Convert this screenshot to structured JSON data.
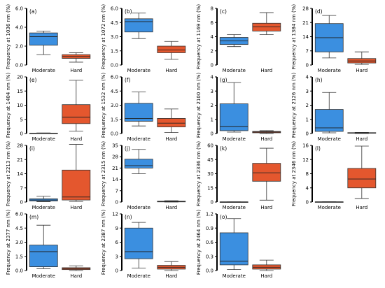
{
  "colors": {
    "moderate": "#3b8fe0",
    "hard": "#e4572e",
    "outline": "#333333",
    "median": "#222222"
  },
  "chart_data": [
    {
      "type": "box",
      "panel_label": "(a)",
      "ylabel": "Frequency at 1036 nm (%)",
      "ylim": [
        0,
        6.0
      ],
      "yticks": [
        "0.0",
        "2.0",
        "4.0",
        "6.0"
      ],
      "categories": [
        "Moderate",
        "Hard"
      ],
      "boxes": [
        {
          "whisker_low": 1.1,
          "q1": 2.1,
          "median": 3.0,
          "q3": 3.4,
          "whisker_high": 3.6
        },
        {
          "whisker_low": 0.3,
          "q1": 0.7,
          "median": 0.9,
          "q3": 1.1,
          "whisker_high": 1.3
        }
      ]
    },
    {
      "type": "box",
      "panel_label": "(b)",
      "ylabel": "Frequency at 1072 nm (%)",
      "ylim": [
        0,
        6.0
      ],
      "yticks": [
        "0.0",
        "1.5",
        "3.0",
        "4.5",
        "6.0"
      ],
      "categories": [
        "Moderate",
        "Hard"
      ],
      "boxes": [
        {
          "whisker_low": 2.8,
          "q1": 3.5,
          "median": 4.6,
          "q3": 4.9,
          "whisker_high": 5.5
        },
        {
          "whisker_low": 0.6,
          "q1": 1.3,
          "median": 1.6,
          "q3": 2.0,
          "whisker_high": 2.5
        }
      ]
    },
    {
      "type": "box",
      "panel_label": "(c)",
      "ylabel": "Frequency at 1169 nm (%)",
      "ylim": [
        0,
        8
      ],
      "yticks": [
        "0",
        "2",
        "4",
        "6",
        "8"
      ],
      "categories": [
        "Moderate",
        "Hard"
      ],
      "boxes": [
        {
          "whisker_low": 2.6,
          "q1": 2.9,
          "median": 3.4,
          "q3": 3.9,
          "whisker_high": 4.3
        },
        {
          "whisker_low": 4.3,
          "q1": 4.8,
          "median": 5.4,
          "q3": 5.9,
          "whisker_high": 7.4
        }
      ]
    },
    {
      "type": "box",
      "panel_label": "(d)",
      "ylabel": "Frequency at 1384 nm (%)",
      "ylim": [
        0,
        28
      ],
      "yticks": [
        "0",
        "7",
        "14",
        "21",
        "28"
      ],
      "categories": [
        "Moderate",
        "Hard"
      ],
      "boxes": [
        {
          "whisker_low": 3.5,
          "q1": 6.5,
          "median": 13.5,
          "q3": 20.5,
          "whisker_high": 24.5
        },
        {
          "whisker_low": 0.3,
          "q1": 1.0,
          "median": 2.0,
          "q3": 3.2,
          "whisker_high": 6.5
        }
      ]
    },
    {
      "type": "box",
      "panel_label": "(e)",
      "ylabel": "Frequency at 1404 nm (%)",
      "ylim": [
        0,
        20
      ],
      "yticks": [
        "0",
        "5",
        "10",
        "15",
        "20"
      ],
      "categories": [
        "Moderate",
        "Hard"
      ],
      "boxes": [
        {
          "whisker_low": 0.0,
          "q1": 0.05,
          "median": 0.1,
          "q3": 0.15,
          "whisker_high": 0.2
        },
        {
          "whisker_low": 0.8,
          "q1": 3.5,
          "median": 5.8,
          "q3": 10.2,
          "whisker_high": 18.8
        }
      ]
    },
    {
      "type": "box",
      "panel_label": "(f)",
      "ylabel": "Frequency at 1532 nm (%)",
      "ylim": [
        0,
        6.0
      ],
      "yticks": [
        "0.0",
        "1.5",
        "3.0",
        "4.5",
        "6.0"
      ],
      "categories": [
        "Moderate",
        "Hard"
      ],
      "boxes": [
        {
          "whisker_low": 0.8,
          "q1": 1.3,
          "median": 1.6,
          "q3": 3.2,
          "whisker_high": 4.4
        },
        {
          "whisker_low": 0.1,
          "q1": 0.7,
          "median": 1.1,
          "q3": 1.6,
          "whisker_high": 2.6
        }
      ]
    },
    {
      "type": "box",
      "panel_label": "(g)",
      "ylabel": "Frequency at 2100 nm (%)",
      "ylim": [
        0,
        4
      ],
      "yticks": [
        "0",
        "1",
        "2",
        "3",
        "4"
      ],
      "categories": [
        "Moderate",
        "Hard"
      ],
      "boxes": [
        {
          "whisker_low": 0.1,
          "q1": 0.2,
          "median": 0.5,
          "q3": 2.1,
          "whisker_high": 3.6
        },
        {
          "whisker_low": 0.0,
          "q1": 0.05,
          "median": 0.1,
          "q3": 0.15,
          "whisker_high": 0.2
        }
      ]
    },
    {
      "type": "box",
      "panel_label": "(h)",
      "ylabel": "Frequency at 2126 nm (%)",
      "ylim": [
        0,
        4
      ],
      "yticks": [
        "0",
        "1",
        "2",
        "3",
        "4"
      ],
      "categories": [
        "Moderate",
        "Hard"
      ],
      "boxes": [
        {
          "whisker_low": 0.05,
          "q1": 0.15,
          "median": 0.4,
          "q3": 1.7,
          "whisker_high": 2.9
        },
        {
          "whisker_low": 0.0,
          "q1": 0.02,
          "median": 0.04,
          "q3": 0.06,
          "whisker_high": 0.08
        }
      ]
    },
    {
      "type": "box",
      "panel_label": "(i)",
      "ylabel": "Frequency at 2213 nm (%)",
      "ylim": [
        0,
        28
      ],
      "yticks": [
        "0",
        "7",
        "14",
        "21",
        "28"
      ],
      "categories": [
        "Moderate",
        "Hard"
      ],
      "boxes": [
        {
          "whisker_low": 0.2,
          "q1": 0.5,
          "median": 1.0,
          "q3": 1.6,
          "whisker_high": 2.8
        },
        {
          "whisker_low": 0.3,
          "q1": 1.0,
          "median": 2.5,
          "q3": 15.8,
          "whisker_high": 28.5
        }
      ]
    },
    {
      "type": "box",
      "panel_label": "(j)",
      "ylabel": "Frequency at 2315 nm (%)",
      "ylim": [
        0,
        35
      ],
      "yticks": [
        "0",
        "7",
        "14",
        "21",
        "28",
        "35"
      ],
      "categories": [
        "Moderate",
        "Hard"
      ],
      "boxes": [
        {
          "whisker_low": 17.5,
          "q1": 21.0,
          "median": 22.5,
          "q3": 26.5,
          "whisker_high": 32.5
        },
        {
          "whisker_low": 0.0,
          "q1": 0.1,
          "median": 0.3,
          "q3": 0.5,
          "whisker_high": 0.8
        }
      ]
    },
    {
      "type": "box",
      "panel_label": "(k)",
      "ylabel": "Frequency at 2336 nm (%)",
      "ylim": [
        0,
        60
      ],
      "yticks": [
        "0",
        "15",
        "30",
        "45",
        "60"
      ],
      "categories": [
        "Moderate",
        "Hard"
      ],
      "boxes": [
        {
          "whisker_low": 0.0,
          "q1": 0.05,
          "median": 0.1,
          "q3": 0.15,
          "whisker_high": 0.2
        },
        {
          "whisker_low": 2.0,
          "q1": 22.0,
          "median": 31.0,
          "q3": 41.0,
          "whisker_high": 57.0
        }
      ]
    },
    {
      "type": "box",
      "panel_label": "(l)",
      "ylabel": "Frequency at 2346 nm (%)",
      "ylim": [
        0,
        16
      ],
      "yticks": [
        "0",
        "4",
        "8",
        "12",
        "16"
      ],
      "categories": [
        "Moderate",
        "Hard"
      ],
      "boxes": [
        {
          "whisker_low": 0.0,
          "q1": 0.02,
          "median": 0.04,
          "q3": 0.06,
          "whisker_high": 0.08
        },
        {
          "whisker_low": 1.0,
          "q1": 4.0,
          "median": 6.5,
          "q3": 9.5,
          "whisker_high": 15.8
        }
      ]
    },
    {
      "type": "box",
      "panel_label": "(m)",
      "ylabel": "Frequency at 2377 nm (%)",
      "ylim": [
        0,
        6.0
      ],
      "yticks": [
        "0.0",
        "1.5",
        "3.0",
        "4.5",
        "6.0"
      ],
      "categories": [
        "Moderate",
        "Hard"
      ],
      "boxes": [
        {
          "whisker_low": 0.2,
          "q1": 0.4,
          "median": 2.0,
          "q3": 2.7,
          "whisker_high": 4.8
        },
        {
          "whisker_low": 0.0,
          "q1": 0.1,
          "median": 0.2,
          "q3": 0.3,
          "whisker_high": 0.5
        }
      ]
    },
    {
      "type": "box",
      "panel_label": "(n)",
      "ylabel": "Frequency at 2387 nm (%)",
      "ylim": [
        0,
        12
      ],
      "yticks": [
        "0",
        "3",
        "6",
        "9",
        "12"
      ],
      "categories": [
        "Moderate",
        "Hard"
      ],
      "boxes": [
        {
          "whisker_low": 0.5,
          "q1": 2.5,
          "median": 4.0,
          "q3": 9.0,
          "whisker_high": 10.2
        },
        {
          "whisker_low": 0.0,
          "q1": 0.3,
          "median": 0.7,
          "q3": 1.1,
          "whisker_high": 1.9
        }
      ]
    },
    {
      "type": "box",
      "panel_label": "(o)",
      "ylabel": "Frequency at 2464 nm (%)",
      "ylim": [
        0,
        1.2
      ],
      "yticks": [
        "0.0",
        "0.3",
        "0.6",
        "0.9",
        "1.2"
      ],
      "categories": [
        "Moderate",
        "Hard"
      ],
      "boxes": [
        {
          "whisker_low": 0.02,
          "q1": 0.12,
          "median": 0.2,
          "q3": 0.8,
          "whisker_high": 1.1
        },
        {
          "whisker_low": 0.0,
          "q1": 0.03,
          "median": 0.07,
          "q3": 0.12,
          "whisker_high": 0.22
        }
      ]
    }
  ]
}
